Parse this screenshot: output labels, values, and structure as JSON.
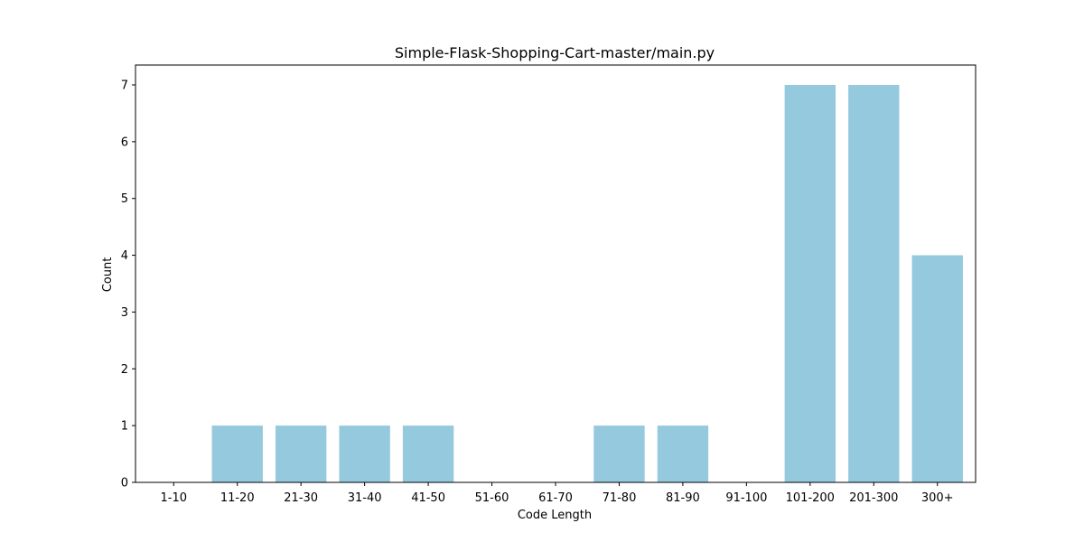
{
  "chart_data": {
    "type": "bar",
    "title": "Simple-Flask-Shopping-Cart-master/main.py",
    "xlabel": "Code Length",
    "ylabel": "Count",
    "categories": [
      "1-10",
      "11-20",
      "21-30",
      "31-40",
      "41-50",
      "51-60",
      "61-70",
      "71-80",
      "81-90",
      "91-100",
      "101-200",
      "201-300",
      "300+"
    ],
    "values": [
      0,
      1,
      1,
      1,
      1,
      0,
      0,
      1,
      1,
      0,
      7,
      7,
      4
    ],
    "ylim": [
      0,
      7.35
    ],
    "yticks": [
      0,
      1,
      2,
      3,
      4,
      5,
      6,
      7
    ],
    "grid": false,
    "bar_color": "#95c9de"
  }
}
